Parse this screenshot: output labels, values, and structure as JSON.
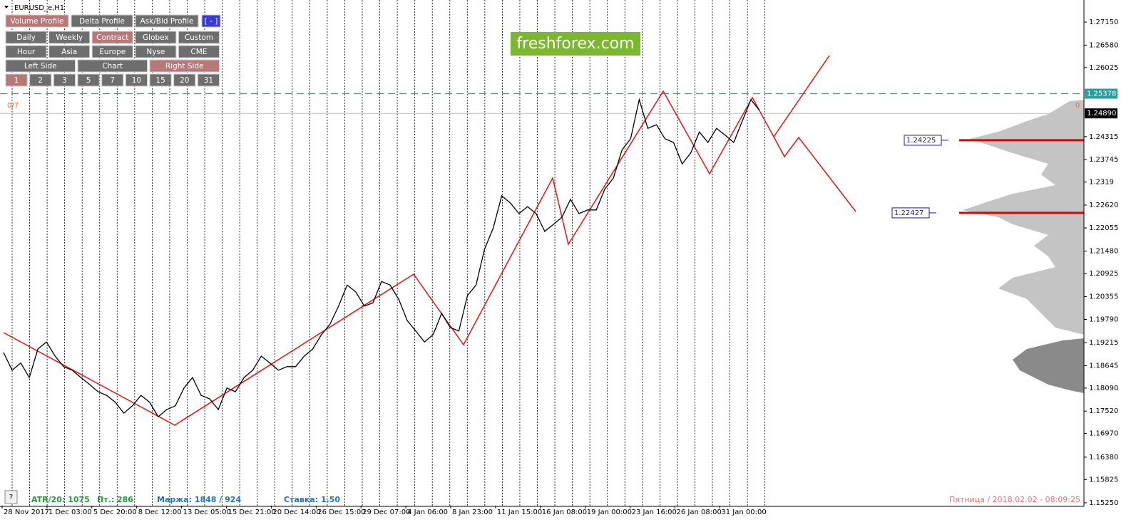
{
  "window_title": "EURUSD_e,H1",
  "watermark": "freshforex.com",
  "buttons": [
    [
      {
        "label": "Volume Profile",
        "active": true
      },
      {
        "label": "Delta Profile",
        "active": false
      },
      {
        "label": "Ask/Bid Profile",
        "active": false
      },
      {
        "label": "[ - ]",
        "active": false,
        "accent": true
      }
    ],
    [
      {
        "label": "Daily",
        "active": false
      },
      {
        "label": "Weekly",
        "active": false
      },
      {
        "label": "Contract",
        "active": true
      },
      {
        "label": "Globex",
        "active": false
      },
      {
        "label": "Custom",
        "active": false
      }
    ],
    [
      {
        "label": "Hour",
        "active": false
      },
      {
        "label": "Asia",
        "active": false
      },
      {
        "label": "Europe",
        "active": false
      },
      {
        "label": "Nyse",
        "active": false
      },
      {
        "label": "CME",
        "active": false
      }
    ],
    [
      {
        "label": "Left Side",
        "active": false
      },
      {
        "label": "Chart",
        "active": false
      },
      {
        "label": "Right Side",
        "active": true
      }
    ],
    [
      {
        "label": "1",
        "active": true
      },
      {
        "label": "2",
        "active": false
      },
      {
        "label": "3",
        "active": false
      },
      {
        "label": "5",
        "active": false
      },
      {
        "label": "7",
        "active": false
      },
      {
        "label": "10",
        "active": false
      },
      {
        "label": "15",
        "active": false
      },
      {
        "label": "20",
        "active": false
      },
      {
        "label": "31",
        "active": false
      }
    ]
  ],
  "counter_left": "0/7",
  "counter_right": "0",
  "price_axis": {
    "ylim": [
      1.15179,
      1.27697
    ],
    "yticks": [
      {
        "value": 1.2715,
        "label": "1.27150"
      },
      {
        "value": 1.2658,
        "label": "1.26580"
      },
      {
        "value": 1.26025,
        "label": "1.26025"
      },
      {
        "value": 1.24315,
        "label": "1.24315"
      },
      {
        "value": 1.23745,
        "label": "1.23745"
      },
      1.2319,
      {
        "value": 1.2262,
        "label": "1.22620"
      },
      {
        "value": 1.22055,
        "label": "1.22055"
      },
      {
        "value": 1.2148,
        "label": "1.21480"
      },
      {
        "value": 1.20925,
        "label": "1.20925"
      },
      {
        "value": 1.20355,
        "label": "1.20355"
      },
      {
        "value": 1.1979,
        "label": "1.19790"
      },
      {
        "value": 1.19215,
        "label": "1.19215"
      },
      {
        "value": 1.18645,
        "label": "1.18645"
      },
      {
        "value": 1.1809,
        "label": "1.18090"
      },
      {
        "value": 1.1752,
        "label": "1.17520"
      },
      {
        "value": 1.1697,
        "label": "1.16970"
      },
      {
        "value": 1.1638,
        "label": "1.16380"
      },
      {
        "value": 1.15825,
        "label": "1.15825"
      },
      {
        "value": 1.1525,
        "label": "1.15250"
      }
    ]
  },
  "levels": {
    "dashed": {
      "value": 1.25378,
      "label": "1.25378",
      "color": "#2a9d9d"
    },
    "bid": {
      "value": 1.2489,
      "label": "1.24890",
      "color": "#000000"
    },
    "poc": [
      {
        "value": 1.24225,
        "label": "1.24225",
        "color": "#e00000"
      },
      {
        "value": 1.22427,
        "label": "1.22427",
        "color": "#e00000"
      }
    ]
  },
  "time_axis": [
    "28 Nov 2017",
    "1 Dec 03:00",
    "5 Dec 20:00",
    "8 Dec 12:00",
    "13 Dec 05:00",
    "15 Dec 21:00",
    "20 Dec 14:00",
    "26 Dec 15:00",
    "29 Dec 07:00",
    "4 Jan 06:00",
    "8 Jan 23:00",
    "11 Jan 15:00",
    "16 Jan 08:00",
    "19 Jan 00:00",
    "23 Jan 16:00",
    "26 Jan 08:00",
    "31 Jan 00:00"
  ],
  "price_line": {
    "color": "#000000",
    "values": [
      1.1897,
      1.1853,
      1.1871,
      1.1835,
      1.1906,
      1.1923,
      1.1888,
      1.1862,
      1.1853,
      1.1835,
      1.1818,
      1.18,
      1.1791,
      1.1774,
      1.1747,
      1.1765,
      1.1791,
      1.1774,
      1.1738,
      1.1756,
      1.1765,
      1.1809,
      1.1835,
      1.1791,
      1.1782,
      1.1756,
      1.1809,
      1.18,
      1.1835,
      1.1853,
      1.1888,
      1.1871,
      1.1853,
      1.1862,
      1.1862,
      1.1888,
      1.1906,
      1.1941,
      1.1967,
      1.2012,
      1.2064,
      1.2047,
      1.2012,
      1.202,
      1.2073,
      1.2064,
      1.2029,
      1.1976,
      1.195,
      1.1923,
      1.1941,
      1.1994,
      1.1959,
      1.195,
      1.2038,
      1.2064,
      1.2153,
      1.2205,
      1.2285,
      1.2267,
      1.2241,
      1.2258,
      1.2241,
      1.2197,
      1.2214,
      1.2232,
      1.2276,
      1.2241,
      1.225,
      1.225,
      1.2302,
      1.2329,
      1.2399,
      1.2426,
      1.2523,
      1.2452,
      1.2461,
      1.2426,
      1.2417,
      1.2364,
      1.2391,
      1.2443,
      1.2417,
      1.2452,
      1.2435,
      1.2417,
      1.247,
      1.2523,
      1.2496
    ]
  },
  "status": {
    "help": "?",
    "atr": "ATR/20: 1075",
    "points": "Пт.: 286",
    "margin": "Маржа: 1848 / 924",
    "rate": "Ставка: 1.50",
    "datetime": "Пятница  /  2018.02.02 - 08:09:25"
  }
}
